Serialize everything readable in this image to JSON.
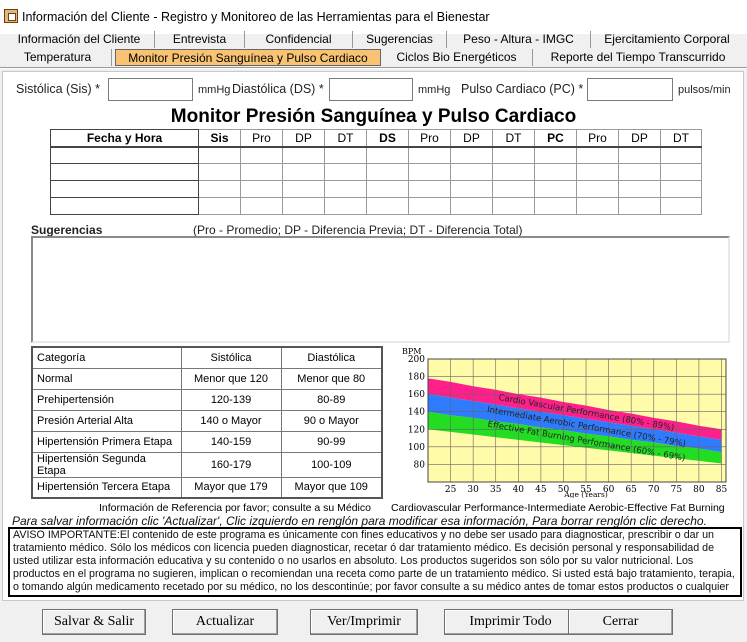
{
  "window": {
    "title": "Información del Cliente - Registro y Monitoreo de las Herramientas para el Bienestar"
  },
  "tabs_row1": [
    {
      "label": "Información del Cliente"
    },
    {
      "label": "Entrevista"
    },
    {
      "label": "Confidencial"
    },
    {
      "label": "Sugerencias"
    },
    {
      "label": "Peso - Altura - IMGC"
    },
    {
      "label": "Ejercitamiento Corporal"
    }
  ],
  "tabs_row2": [
    {
      "label": "Temperatura"
    },
    {
      "label": "Monitor Presión Sanguínea y Pulso Cardiaco",
      "active": true
    },
    {
      "label": "Ciclos Bio Energéticos"
    },
    {
      "label": "Reporte del Tiempo Transcurrido"
    }
  ],
  "fields": {
    "sistolica_label": "Sistólica (Sis) *",
    "sistolica_unit": "mmHg",
    "diastolica_label": "Diastólica (DS) *",
    "diastolica_unit": "mmHg",
    "pulso_label": "Pulso Cardiaco (PC) *",
    "pulso_unit": "pulsos/min",
    "sistolica_value": "",
    "diastolica_value": "",
    "pulso_value": ""
  },
  "heading": "Monitor Presión Sanguínea y Pulso Cardiaco",
  "table": {
    "headers": [
      "Fecha y Hora",
      "Sis",
      "Pro",
      "DP",
      "DT",
      "DS",
      "Pro",
      "DP",
      "DT",
      "PC",
      "Pro",
      "DP",
      "DT"
    ],
    "rows": [
      [
        "",
        "",
        "",
        "",
        "",
        "",
        "",
        "",
        "",
        "",
        "",
        "",
        ""
      ],
      [
        "",
        "",
        "",
        "",
        "",
        "",
        "",
        "",
        "",
        "",
        "",
        "",
        ""
      ],
      [
        "",
        "",
        "",
        "",
        "",
        "",
        "",
        "",
        "",
        "",
        "",
        "",
        ""
      ],
      [
        "",
        "",
        "",
        "",
        "",
        "",
        "",
        "",
        "",
        "",
        "",
        "",
        ""
      ]
    ]
  },
  "suggestions": {
    "label": "Sugerencias",
    "legend": "(Pro - Promedio; DP - Diferencia Previa; DT - Diferencia Total)",
    "text": ""
  },
  "categories": {
    "headers": [
      "Categoría",
      "Sistólica",
      "Diastólica"
    ],
    "rows": [
      [
        "Normal",
        "Menor que 120",
        "Menor que 80"
      ],
      [
        "Prehipertensión",
        "120-139",
        "80-89"
      ],
      [
        "Presión Arterial Alta",
        "140 o Mayor",
        "90 o Mayor"
      ],
      [
        "Hipertensión Primera Etapa",
        "140-159",
        "90-99"
      ],
      [
        "Hipertensión Segunda Etapa",
        "160-179",
        "100-109"
      ],
      [
        "Hipertensión Tercera Etapa",
        "Mayor que 179",
        "Mayor que 109"
      ]
    ],
    "footnote": "Información de Referencia por favor; consulte a su Médico"
  },
  "chart_caption": "Cardiovascular Performance-Intermediate Aerobic-Effective Fat Burning",
  "chart_data": {
    "type": "area",
    "title": "",
    "ylabel": "BPM",
    "xlabel": "Age (Years)",
    "x": [
      20,
      25,
      30,
      35,
      40,
      45,
      50,
      55,
      60,
      65,
      70,
      75,
      80,
      85
    ],
    "xticks": [
      25,
      30,
      35,
      40,
      45,
      50,
      55,
      60,
      65,
      70,
      75,
      80,
      85
    ],
    "yticks": [
      80,
      100,
      120,
      140,
      160,
      180,
      200
    ],
    "xlim": [
      20,
      86
    ],
    "ylim": [
      60,
      200
    ],
    "grid": true,
    "background": "#fffba8",
    "series": [
      {
        "name": "Cardio Vascular Performance (80% - 89%)",
        "color": "#ff1f8a",
        "lower": [
          160,
          156,
          152,
          148,
          144,
          140,
          136,
          132,
          128,
          124,
          120,
          116,
          112,
          108
        ],
        "upper": [
          178,
          174,
          169,
          165,
          160,
          156,
          151,
          147,
          142,
          138,
          133,
          129,
          124,
          120
        ]
      },
      {
        "name": "Intermediate Aerobic Performance (70% - 79%)",
        "color": "#2f7bff",
        "lower": [
          140,
          136,
          133,
          129,
          126,
          122,
          119,
          115,
          112,
          108,
          105,
          101,
          98,
          94
        ],
        "upper": [
          160,
          156,
          152,
          148,
          144,
          140,
          136,
          132,
          128,
          124,
          120,
          116,
          112,
          108
        ]
      },
      {
        "name": "Effective Fat Burning Performance (60% - 69%)",
        "color": "#22dd22",
        "lower": [
          120,
          117,
          114,
          111,
          108,
          105,
          102,
          99,
          96,
          93,
          90,
          87,
          84,
          81
        ],
        "upper": [
          140,
          136,
          133,
          129,
          126,
          122,
          119,
          115,
          112,
          108,
          105,
          101,
          98,
          94
        ]
      }
    ]
  },
  "hint": "Para salvar información clic 'Actualizar', Clic izquierdo en renglón para modificar esa información, Para borrar renglón clic derecho.",
  "aviso": "AVISO IMPORTANTE:El contenido de este programa es únicamente con fines educativos y no debe ser usado para diagnosticar, prescribir o dar un tratamiento médico. Sólo los médicos con licencia pueden diagnosticar, recetar ó dar tratamiento médico. Es decisión personal y responsabilidad de usted utilizar esta información educativa y su contenido o no usarlos en absoluto. Los productos sugeridos son sólo por su valor nutricional. Los productos en el programa no sugieren, implican o recomiendan una receta como parte de un tratamiento médico. Si usted está bajo tratamiento, terapia, o tomando algún medicamento recetado por su médico, no los descontinúe; por favor consulte a su médico antes de tomar estos productos o cualquier sugerencia.",
  "buttons": {
    "save_exit": "Salvar & Salir",
    "update": "Actualizar",
    "view_print": "Ver/Imprimir",
    "print_all": "Imprimir Todo",
    "close": "Cerrar"
  }
}
